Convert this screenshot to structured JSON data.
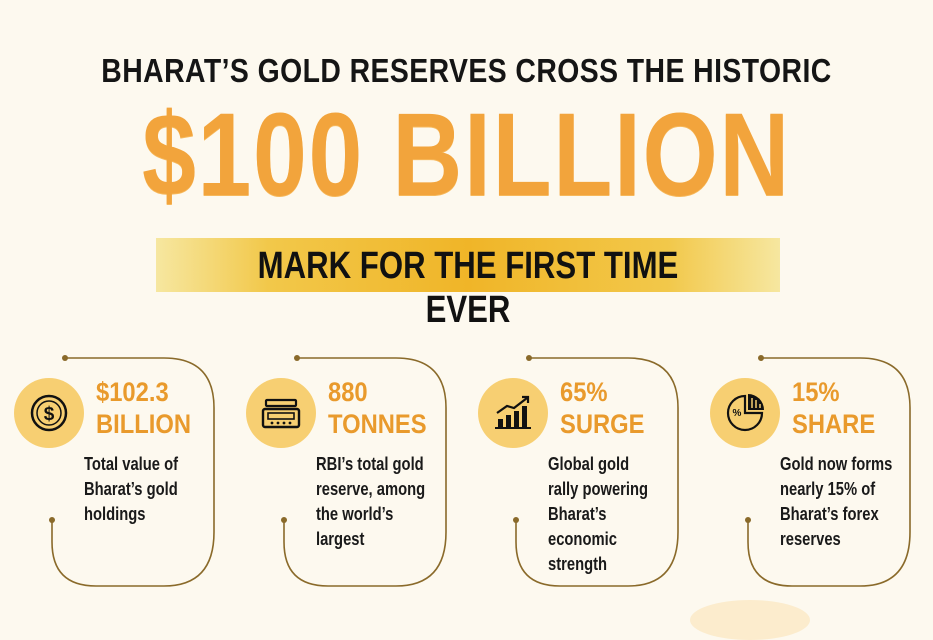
{
  "header": {
    "line1": "BHARAT’S GOLD RESERVES CROSS THE HISTORIC",
    "big": "$100 BILLION",
    "banner": "MARK FOR THE FIRST TIME EVER"
  },
  "colors": {
    "accent": "#f2a43c",
    "gold": "#f0b528",
    "line": "#8a6a2a",
    "circle": "#f7cf72"
  },
  "cards": [
    {
      "icon": "dollar-coin-icon",
      "stat_line1": "$102.3",
      "stat_line2": "BILLION",
      "desc": [
        "Total value of",
        "Bharat’s gold",
        "holdings"
      ]
    },
    {
      "icon": "weighing-scale-icon",
      "stat_line1": "880",
      "stat_line2": "TONNES",
      "desc": [
        "RBI’s total gold",
        "reserve, among",
        "the world’s",
        "largest"
      ]
    },
    {
      "icon": "growth-chart-icon",
      "stat_line1": "65%",
      "stat_line2": "SURGE",
      "desc": [
        "Global gold",
        "rally powering",
        "Bharat’s",
        "economic",
        "strength"
      ]
    },
    {
      "icon": "pie-chart-icon",
      "stat_line1": "15%",
      "stat_line2": "SHARE",
      "desc": [
        "Gold now forms",
        "nearly 15% of",
        "Bharat’s forex",
        "reserves"
      ]
    }
  ]
}
